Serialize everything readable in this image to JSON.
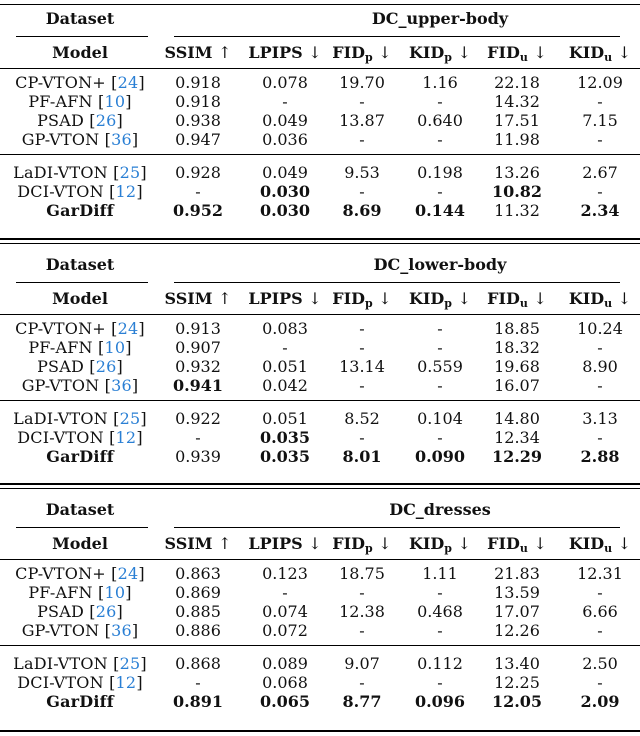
{
  "table": {
    "dataset_label": "Dataset",
    "model_label": "Model",
    "columns": [
      {
        "name": "SSIM",
        "sub": "",
        "arrow": "↑"
      },
      {
        "name": "LPIPS",
        "sub": "",
        "arrow": "↓"
      },
      {
        "name": "FID",
        "sub": "p",
        "arrow": "↓"
      },
      {
        "name": "KID",
        "sub": "p",
        "arrow": "↓"
      },
      {
        "name": "FID",
        "sub": "u",
        "arrow": "↓"
      },
      {
        "name": "KID",
        "sub": "u",
        "arrow": "↓"
      }
    ],
    "sections": [
      {
        "dataset": "DC_upper-body",
        "rows": [
          {
            "model": "CP-VTON+",
            "cite": "24",
            "values": [
              "0.918",
              "0.078",
              "19.70",
              "1.16",
              "22.18",
              "12.09"
            ],
            "bold": []
          },
          {
            "model": "PF-AFN",
            "cite": "10",
            "values": [
              "0.918",
              "-",
              "-",
              "-",
              "14.32",
              "-"
            ],
            "bold": []
          },
          {
            "model": "PSAD",
            "cite": "26",
            "values": [
              "0.938",
              "0.049",
              "13.87",
              "0.640",
              "17.51",
              "7.15"
            ],
            "bold": []
          },
          {
            "model": "GP-VTON",
            "cite": "36",
            "values": [
              "0.947",
              "0.036",
              "-",
              "-",
              "11.98",
              "-"
            ],
            "bold": []
          },
          {
            "model": "LaDI-VTON",
            "cite": "25",
            "values": [
              "0.928",
              "0.049",
              "9.53",
              "0.198",
              "13.26",
              "2.67"
            ],
            "bold": []
          },
          {
            "model": "DCI-VTON",
            "cite": "12",
            "values": [
              "-",
              "0.030",
              "-",
              "-",
              "10.82",
              "-"
            ],
            "bold": [
              1,
              4
            ]
          },
          {
            "model": "GarDiff",
            "cite": "",
            "values": [
              "0.952",
              "0.030",
              "8.69",
              "0.144",
              "11.32",
              "2.34"
            ],
            "bold": [
              0,
              1,
              2,
              3,
              5
            ],
            "model_bold": true
          }
        ]
      },
      {
        "dataset": "DC_lower-body",
        "rows": [
          {
            "model": "CP-VTON+",
            "cite": "24",
            "values": [
              "0.913",
              "0.083",
              "-",
              "-",
              "18.85",
              "10.24"
            ],
            "bold": []
          },
          {
            "model": "PF-AFN",
            "cite": "10",
            "values": [
              "0.907",
              "-",
              "-",
              "-",
              "18.32",
              "-"
            ],
            "bold": []
          },
          {
            "model": "PSAD",
            "cite": "26",
            "values": [
              "0.932",
              "0.051",
              "13.14",
              "0.559",
              "19.68",
              "8.90"
            ],
            "bold": []
          },
          {
            "model": "GP-VTON",
            "cite": "36",
            "values": [
              "0.941",
              "0.042",
              "-",
              "-",
              "16.07",
              "-"
            ],
            "bold": [
              0
            ]
          },
          {
            "model": "LaDI-VTON",
            "cite": "25",
            "values": [
              "0.922",
              "0.051",
              "8.52",
              "0.104",
              "14.80",
              "3.13"
            ],
            "bold": []
          },
          {
            "model": "DCI-VTON",
            "cite": "12",
            "values": [
              "-",
              "0.035",
              "-",
              "-",
              "12.34",
              "-"
            ],
            "bold": [
              1
            ]
          },
          {
            "model": "GarDiff",
            "cite": "",
            "values": [
              "0.939",
              "0.035",
              "8.01",
              "0.090",
              "12.29",
              "2.88"
            ],
            "bold": [
              1,
              2,
              3,
              4,
              5
            ],
            "model_bold": true
          }
        ]
      },
      {
        "dataset": "DC_dresses",
        "rows": [
          {
            "model": "CP-VTON+",
            "cite": "24",
            "values": [
              "0.863",
              "0.123",
              "18.75",
              "1.11",
              "21.83",
              "12.31"
            ],
            "bold": []
          },
          {
            "model": "PF-AFN",
            "cite": "10",
            "values": [
              "0.869",
              "-",
              "-",
              "-",
              "13.59",
              "-"
            ],
            "bold": []
          },
          {
            "model": "PSAD",
            "cite": "26",
            "values": [
              "0.885",
              "0.074",
              "12.38",
              "0.468",
              "17.07",
              "6.66"
            ],
            "bold": []
          },
          {
            "model": "GP-VTON",
            "cite": "36",
            "values": [
              "0.886",
              "0.072",
              "-",
              "-",
              "12.26",
              "-"
            ],
            "bold": []
          },
          {
            "model": "LaDI-VTON",
            "cite": "25",
            "values": [
              "0.868",
              "0.089",
              "9.07",
              "0.112",
              "13.40",
              "2.50"
            ],
            "bold": []
          },
          {
            "model": "DCI-VTON",
            "cite": "12",
            "values": [
              "-",
              "0.068",
              "-",
              "-",
              "12.25",
              "-"
            ],
            "bold": []
          },
          {
            "model": "GarDiff",
            "cite": "",
            "values": [
              "0.891",
              "0.065",
              "8.77",
              "0.096",
              "12.05",
              "2.09"
            ],
            "bold": [
              0,
              1,
              2,
              3,
              4,
              5
            ],
            "model_bold": true
          }
        ]
      }
    ]
  }
}
